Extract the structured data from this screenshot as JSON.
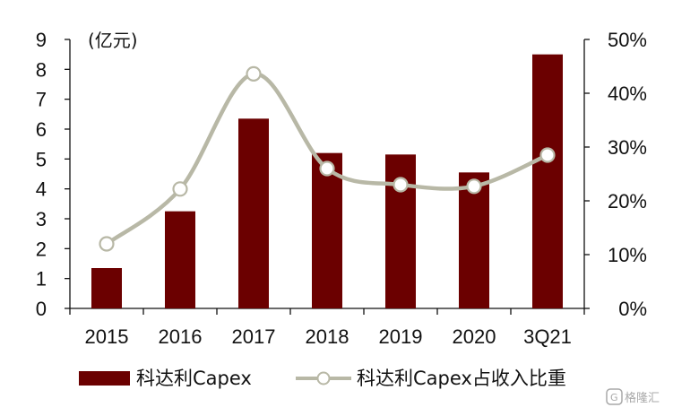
{
  "chart_data": {
    "type": "bar+line",
    "categories": [
      "2015",
      "2016",
      "2017",
      "2018",
      "2019",
      "2020",
      "3Q21"
    ],
    "unit_label": "(亿元)",
    "y_left": {
      "min": 0,
      "max": 9,
      "ticks": [
        "0",
        "1",
        "2",
        "3",
        "4",
        "5",
        "6",
        "7",
        "8",
        "9"
      ]
    },
    "y_right": {
      "min": 0,
      "max": 50,
      "ticks": [
        "0%",
        "10%",
        "20%",
        "30%",
        "40%",
        "50%"
      ]
    },
    "grid": false,
    "legend_position": "bottom",
    "series": [
      {
        "name": "科达利Capex",
        "kind": "bar",
        "axis": "left",
        "color": "#6b0000",
        "values": [
          1.35,
          3.25,
          6.35,
          5.2,
          5.15,
          4.55,
          8.5
        ]
      },
      {
        "name": "科达利Capex占收入比重",
        "kind": "line",
        "axis": "right",
        "color": "#b8b8a6",
        "unit": "%",
        "values": [
          12,
          22.2,
          43.6,
          26,
          23,
          22.7,
          28.5
        ]
      }
    ]
  },
  "watermark": {
    "text": "格隆汇",
    "icon": "g-logo-icon"
  }
}
